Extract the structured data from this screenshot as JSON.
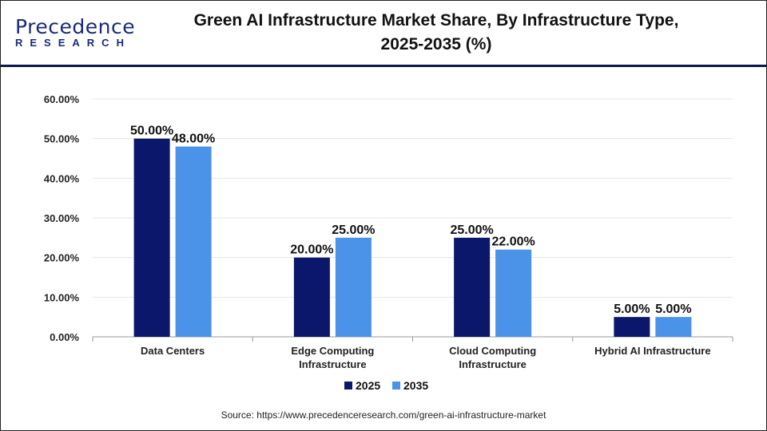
{
  "logo": {
    "brand": "Precedence",
    "sub": "RESEARCH"
  },
  "title_line1": "Green AI Infrastructure Market Share, By Infrastructure Type,",
  "title_line2": "2025-2035 (%)",
  "source": "Source: https://www.precedenceresearch.com/green-ai-infrastructure-market",
  "chart_data": {
    "type": "bar",
    "title": "Green AI Infrastructure Market Share, By Infrastructure Type, 2025-2035 (%)",
    "categories": [
      [
        "Data Centers"
      ],
      [
        "Edge Computing",
        "Infrastructure"
      ],
      [
        "Cloud Computing",
        "Infrastructure"
      ],
      [
        "Hybrid AI Infrastructure"
      ]
    ],
    "series": [
      {
        "name": "2025",
        "color": "#0b176b",
        "values": [
          50,
          20,
          25,
          5
        ]
      },
      {
        "name": "2035",
        "color": "#4a93e8",
        "values": [
          48,
          25,
          22,
          5
        ]
      }
    ],
    "ylim": [
      0,
      60
    ],
    "yticks": [
      "0.00%",
      "10.00%",
      "20.00%",
      "30.00%",
      "40.00%",
      "50.00%",
      "60.00%"
    ],
    "grid": true,
    "legend": "bottom",
    "data_label_format": "0.00%"
  }
}
